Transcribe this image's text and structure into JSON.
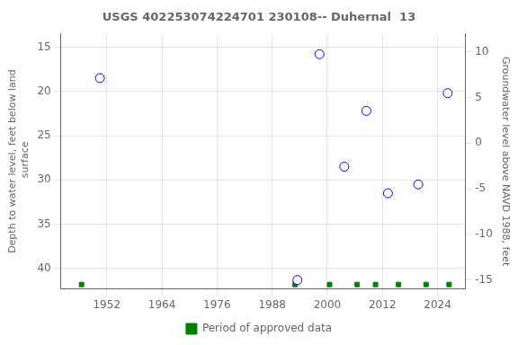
{
  "chart_data": {
    "type": "scatter",
    "title": "USGS 402253074224701 230108-- Duhernal  13",
    "y_label": "Depth to water level, feet below land\n surface",
    "y2_label": "Groundwater level above NAVD 1988, feet",
    "series": [
      {
        "color": "blue",
        "marker": "circle",
        "x": [
          1950.5,
          1993.5,
          1998.3,
          2003.7,
          2008.5,
          2013.2,
          2019.8,
          2026.2
        ],
        "values": [
          18.5,
          41.3,
          15.8,
          28.5,
          22.2,
          31.5,
          30.5,
          20.2
        ]
      },
      {
        "name": "Period of approved data",
        "color": "#008000",
        "marker": "square",
        "x": [
          1946.5,
          1993.0,
          2000.5,
          2006.5,
          2010.5,
          2015.5,
          2021.5,
          2026.5
        ],
        "values": [
          41.8,
          41.8,
          41.8,
          41.8,
          41.8,
          41.8,
          41.8,
          41.8
        ]
      }
    ],
    "xlim": [
      1942,
      2030
    ],
    "xticks": [
      1952,
      1964,
      1976,
      1988,
      2000,
      2012,
      2024
    ],
    "ylim": [
      42.3,
      13.5
    ],
    "yticks": [
      15,
      20,
      25,
      30,
      35,
      40
    ],
    "y2lim": [
      -16.0,
      12.0
    ],
    "y2ticks": [
      10,
      5,
      0,
      -5,
      -10,
      -15
    ],
    "grid": true,
    "legend": "bottom"
  }
}
